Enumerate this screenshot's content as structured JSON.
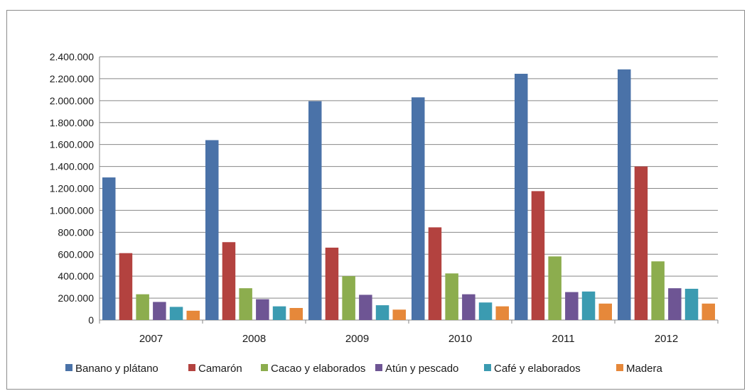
{
  "chart_data": {
    "type": "bar",
    "categories": [
      "2007",
      "2008",
      "2009",
      "2010",
      "2011",
      "2012"
    ],
    "series": [
      {
        "name": "Banano y plátano",
        "color": "#4a72a8",
        "values": [
          1300000,
          1640000,
          1995000,
          2030000,
          2245000,
          2285000
        ]
      },
      {
        "name": "Camarón",
        "color": "#b3423f",
        "values": [
          610000,
          710000,
          660000,
          845000,
          1175000,
          1400000
        ]
      },
      {
        "name": "Cacao y elaborados",
        "color": "#8cad4e",
        "values": [
          235000,
          290000,
          400000,
          425000,
          580000,
          535000
        ]
      },
      {
        "name": "Atún y pescado",
        "color": "#6e5594",
        "values": [
          165000,
          190000,
          230000,
          235000,
          255000,
          290000
        ]
      },
      {
        "name": "Café y elaborados",
        "color": "#3b9bb1",
        "values": [
          120000,
          125000,
          135000,
          160000,
          260000,
          285000
        ]
      },
      {
        "name": "Madera",
        "color": "#e6883a",
        "values": [
          85000,
          110000,
          95000,
          125000,
          150000,
          150000
        ]
      }
    ],
    "yticks": [
      "0",
      "200.000",
      "400.000",
      "600.000",
      "800.000",
      "1.000.000",
      "1.200.000",
      "1.400.000",
      "1.600.000",
      "1.800.000",
      "2.000.000",
      "2.200.000",
      "2.400.000"
    ],
    "ylim": [
      0,
      2400000
    ],
    "grid": true,
    "legend_position": "bottom",
    "title": "",
    "xlabel": "",
    "ylabel": ""
  }
}
